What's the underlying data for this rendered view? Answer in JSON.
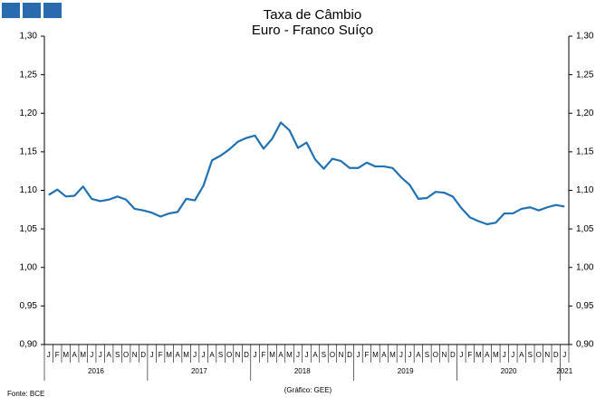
{
  "chart_data": {
    "type": "line",
    "title": "Taxa de Câmbio",
    "subtitle": "Euro - Franco Suíço",
    "categories": [
      "J",
      "F",
      "M",
      "A",
      "M",
      "J",
      "J",
      "A",
      "S",
      "O",
      "N",
      "D",
      "J",
      "F",
      "M",
      "A",
      "M",
      "J",
      "J",
      "A",
      "S",
      "O",
      "N",
      "D",
      "J",
      "F",
      "M",
      "A",
      "M",
      "J",
      "J",
      "A",
      "S",
      "O",
      "N",
      "D",
      "J",
      "F",
      "M",
      "A",
      "M",
      "J",
      "J",
      "A",
      "S",
      "O",
      "N",
      "D",
      "J",
      "F",
      "M",
      "A",
      "M",
      "J",
      "J",
      "A",
      "S",
      "O",
      "N",
      "D",
      "J"
    ],
    "years": [
      "2016",
      "2017",
      "2018",
      "2019",
      "2020",
      "2021"
    ],
    "series": [
      {
        "color": "#2271b3",
        "values": [
          1.094,
          1.101,
          1.092,
          1.093,
          1.105,
          1.089,
          1.086,
          1.088,
          1.092,
          1.088,
          1.076,
          1.074,
          1.071,
          1.066,
          1.07,
          1.072,
          1.089,
          1.087,
          1.106,
          1.139,
          1.145,
          1.153,
          1.163,
          1.168,
          1.171,
          1.154,
          1.167,
          1.188,
          1.178,
          1.155,
          1.162,
          1.14,
          1.128,
          1.141,
          1.138,
          1.129,
          1.129,
          1.136,
          1.131,
          1.131,
          1.129,
          1.117,
          1.107,
          1.089,
          1.09,
          1.098,
          1.097,
          1.092,
          1.077,
          1.065,
          1.06,
          1.056,
          1.058,
          1.07,
          1.07,
          1.076,
          1.078,
          1.074,
          1.078,
          1.081,
          1.079
        ]
      }
    ],
    "ylim": [
      0.9,
      1.3
    ],
    "yticks": [
      {
        "value": 0.9,
        "label": "0,90"
      },
      {
        "value": 0.95,
        "label": "0,95"
      },
      {
        "value": 1.0,
        "label": "1,00"
      },
      {
        "value": 1.05,
        "label": "1,05"
      },
      {
        "value": 1.1,
        "label": "1,10"
      },
      {
        "value": 1.15,
        "label": "1,15"
      },
      {
        "value": 1.2,
        "label": "1,20"
      },
      {
        "value": 1.25,
        "label": "1,25"
      },
      {
        "value": 1.3,
        "label": "1,30"
      }
    ],
    "source": "Fonte: BCE",
    "credit": "(Gráfico: GEE)"
  }
}
